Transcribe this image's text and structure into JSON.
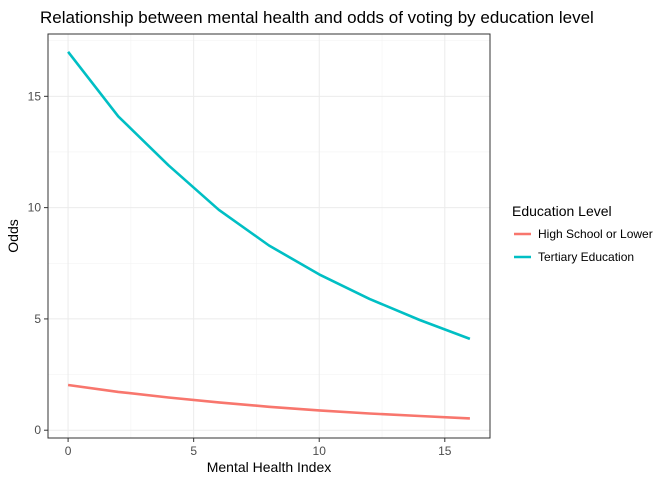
{
  "chart_data": {
    "type": "line",
    "title": "Relationship between mental health and odds of voting by education level",
    "xlabel": "Mental Health Index",
    "ylabel": "Odds",
    "xlim": [
      -0.8,
      16.8
    ],
    "ylim": [
      -0.35,
      17.8
    ],
    "x_ticks": [
      0,
      5,
      10,
      15
    ],
    "y_ticks": [
      0,
      5,
      10,
      15
    ],
    "grid": true,
    "legend": {
      "title": "Education Level",
      "position": "right"
    },
    "series": [
      {
        "name": "High School or Lower",
        "color": "#F8766D",
        "x": [
          0,
          2,
          4,
          6,
          8,
          10,
          12,
          14,
          16
        ],
        "y": [
          2.03,
          1.72,
          1.47,
          1.25,
          1.05,
          0.89,
          0.75,
          0.64,
          0.53
        ]
      },
      {
        "name": "Tertiary Education",
        "color": "#00BFC4",
        "x": [
          0,
          2,
          4,
          6,
          8,
          10,
          12,
          14,
          16
        ],
        "y": [
          17.0,
          14.1,
          11.9,
          9.9,
          8.3,
          7.0,
          5.9,
          4.95,
          4.1
        ]
      }
    ]
  }
}
